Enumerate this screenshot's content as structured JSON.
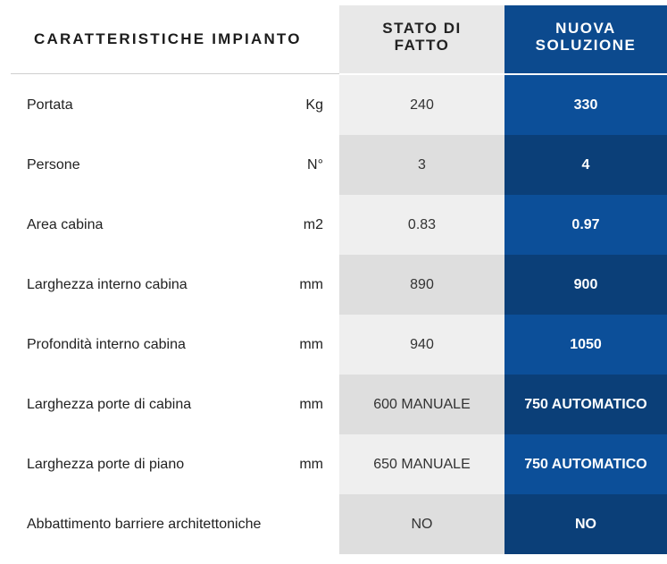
{
  "header": {
    "title": "CARATTERISTICHE IMPIANTO",
    "old_col_line1": "STATO DI",
    "old_col_line2": "FATTO",
    "new_col_line1": "NUOVA",
    "new_col_line2": "SOLUZIONE"
  },
  "rows": [
    {
      "label": "Portata",
      "unit": "Kg",
      "old": "240",
      "new": "330"
    },
    {
      "label": "Persone",
      "unit": "N°",
      "old": "3",
      "new": "4"
    },
    {
      "label": "Area cabina",
      "unit": "m2",
      "old": "0.83",
      "new": "0.97"
    },
    {
      "label": "Larghezza interno cabina",
      "unit": "mm",
      "old": "890",
      "new": "900"
    },
    {
      "label": "Profondità interno cabina",
      "unit": "mm",
      "old": "940",
      "new": "1050"
    },
    {
      "label": "Larghezza porte di cabina",
      "unit": "mm",
      "old": "600 MANUALE",
      "new": "750 AUTOMATICO"
    },
    {
      "label": "Larghezza porte di piano",
      "unit": "mm",
      "old": "650 MANUALE",
      "new": "750 AUTOMATICO"
    },
    {
      "label": "Abbattimento barriere architettoniche",
      "unit": "",
      "old": "NO",
      "new": "NO"
    }
  ],
  "colors": {
    "new_solution": "#0c4a8e",
    "old_state": "#e8e8e8"
  }
}
